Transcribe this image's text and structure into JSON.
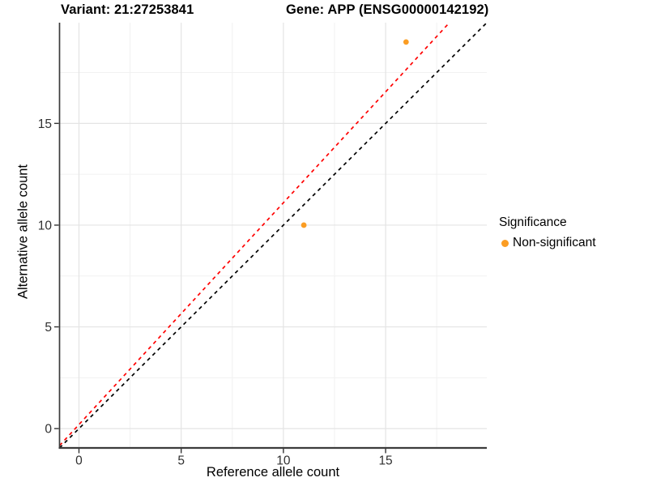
{
  "chart_data": {
    "type": "scatter",
    "titles": {
      "variant": "Variant: 21:27253841",
      "gene": "Gene: APP (ENSG00000142192)"
    },
    "xlabel": "Reference allele count",
    "ylabel": "Alternative allele count",
    "xlim": [
      -0.95,
      19.95
    ],
    "ylim": [
      -0.95,
      19.95
    ],
    "x_ticks": [
      0,
      5,
      10,
      15
    ],
    "y_ticks": [
      0,
      5,
      10,
      15
    ],
    "x_minor_gridlines": [
      2.5,
      7.5,
      12.5,
      17.5
    ],
    "y_minor_gridlines": [
      2.5,
      7.5,
      12.5,
      17.5
    ],
    "grid": true,
    "legend_position": "right",
    "points": [
      {
        "x": 11,
        "y": 10,
        "significance": "Non-significant"
      },
      {
        "x": 16,
        "y": 19,
        "significance": "Non-significant"
      }
    ],
    "lines": [
      {
        "name": "identity-line",
        "slope": 1,
        "intercept": 0,
        "color": "#000000",
        "style": "dashed"
      },
      {
        "name": "expected-ratio-line",
        "slope": 1.09,
        "intercept": 0.2,
        "color": "#FF0000",
        "style": "dashed"
      }
    ],
    "legend": {
      "title": "Significance",
      "items": [
        {
          "label": "Non-significant",
          "color": "#FB9D23"
        }
      ]
    },
    "colors": {
      "background": "#FFFFFF",
      "point": "#FB9D23",
      "grid_major": "#E4E4E4",
      "grid_minor": "#F1F1F1",
      "axis": "#3C3C3C",
      "tick": "#333333",
      "tick_label": "#303030"
    }
  }
}
